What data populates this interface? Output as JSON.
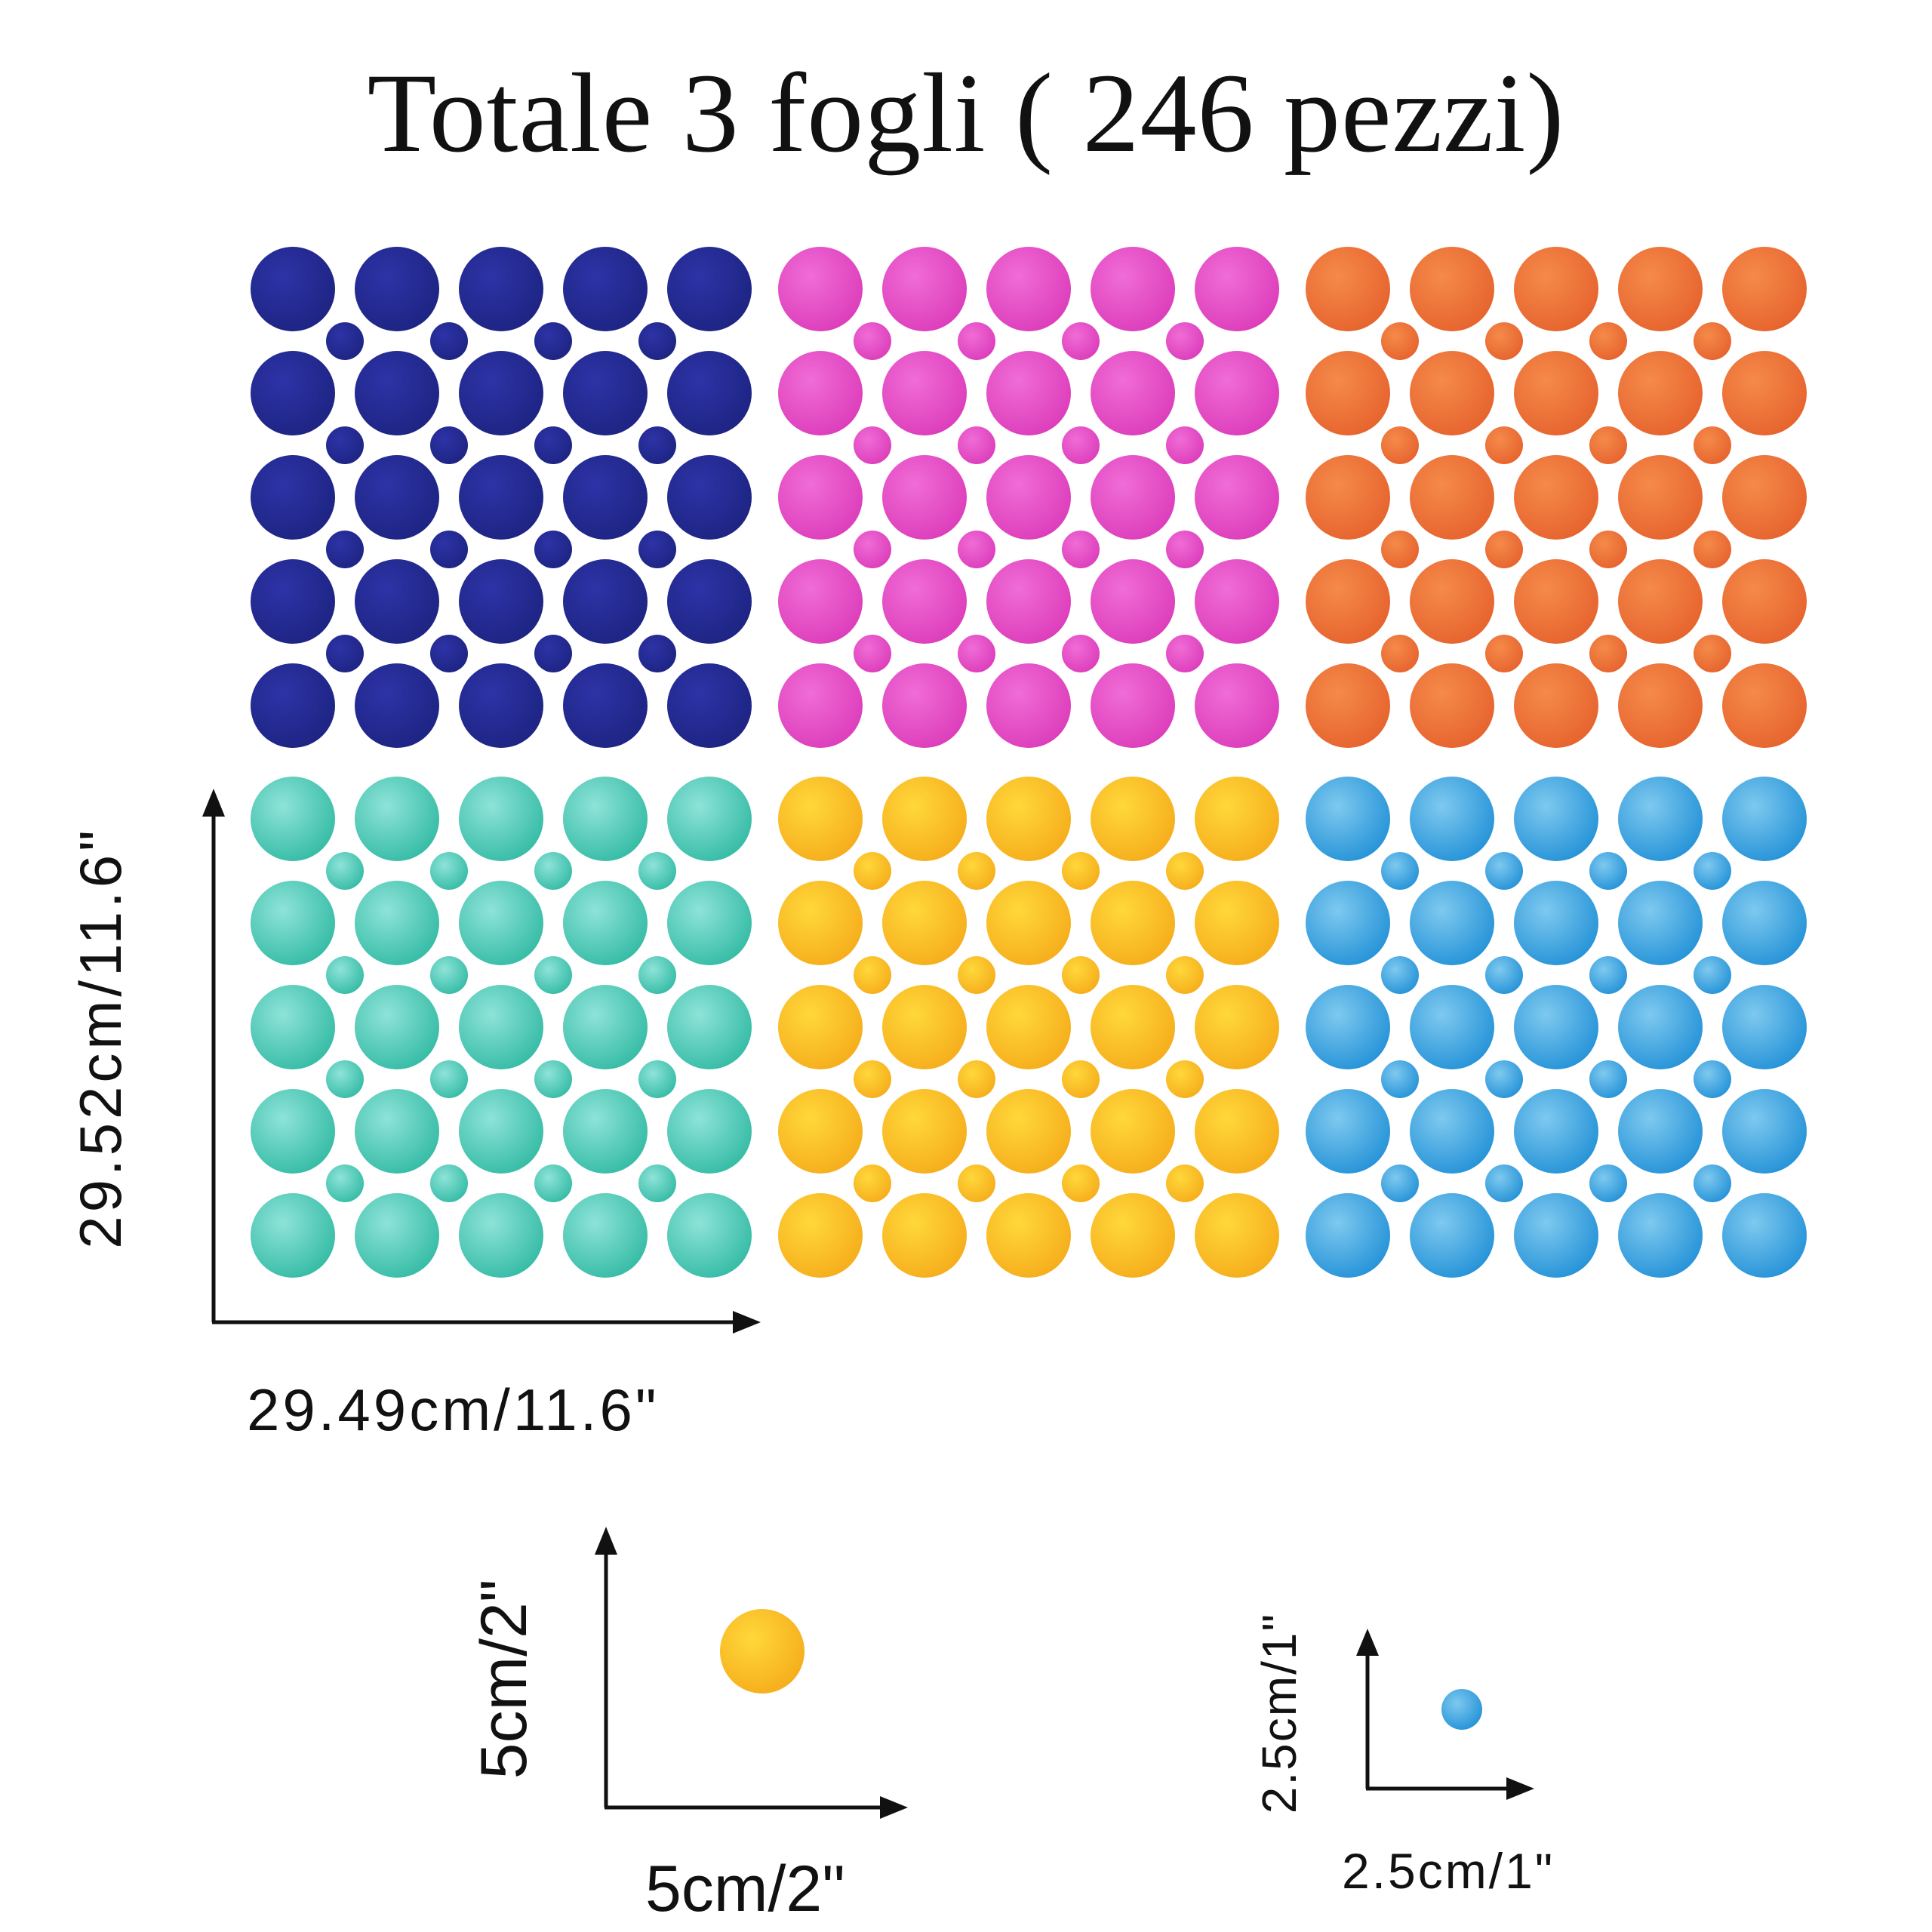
{
  "title": "Totale 3 fogli ( 246 pezzi)",
  "colors": {
    "blue": [
      "#2d33a6",
      "#1c2380"
    ],
    "pink": [
      "#f06cd6",
      "#db3ab9"
    ],
    "orange": [
      "#f58a4a",
      "#e5612c"
    ],
    "teal": [
      "#8ee3d8",
      "#2fb9a2"
    ],
    "yellow": [
      "#ffd83a",
      "#f5aa1a"
    ],
    "skyblue": [
      "#7ec9ef",
      "#1f8fd6"
    ]
  },
  "sheet_colors": [
    [
      "blue",
      "pink",
      "orange"
    ],
    [
      "teal",
      "yellow",
      "skyblue"
    ]
  ],
  "sheet_dimensions": {
    "height_label": "29.52cm/11.6\"",
    "width_label": "29.49cm/11.6\""
  },
  "large_dot": {
    "color": "yellow",
    "height_label": "5cm/2\"",
    "width_label": "5cm/2\""
  },
  "small_dot": {
    "color": "skyblue",
    "height_label": "2.5cm/1\"",
    "width_label": "2.5cm/1\""
  }
}
